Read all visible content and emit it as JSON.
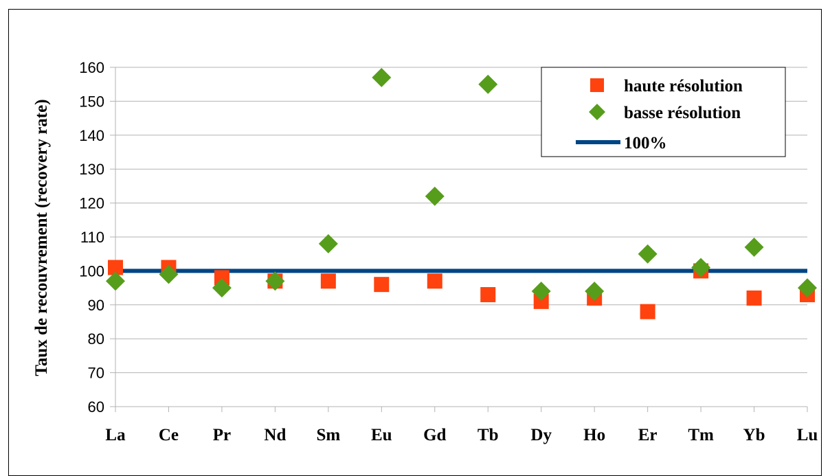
{
  "chart_data": {
    "type": "scatter",
    "title": "",
    "xlabel": "",
    "ylabel": "Taux de recouvrement (recovery rate)",
    "ylim": [
      60,
      160
    ],
    "yticks": [
      60,
      70,
      80,
      90,
      100,
      110,
      120,
      130,
      140,
      150,
      160
    ],
    "grid": true,
    "legend_position": "top-right",
    "categories": [
      "La",
      "Ce",
      "Pr",
      "Nd",
      "Sm",
      "Eu",
      "Gd",
      "Tb",
      "Dy",
      "Ho",
      "Er",
      "Tm",
      "Yb",
      "Lu"
    ],
    "series": [
      {
        "name": "haute résolution",
        "marker": "square",
        "color": "#ff420e",
        "values": [
          101,
          101,
          98,
          97,
          97,
          96,
          97,
          93,
          91,
          92,
          88,
          100,
          92,
          93
        ]
      },
      {
        "name": "basse résolution",
        "marker": "diamond",
        "color": "#579d1c",
        "values": [
          97,
          99,
          95,
          97,
          108,
          157,
          122,
          155,
          94,
          94,
          105,
          101,
          107,
          95
        ]
      },
      {
        "name": "100%",
        "marker": "line",
        "color": "#004586",
        "values": [
          100,
          100,
          100,
          100,
          100,
          100,
          100,
          100,
          100,
          100,
          100,
          100,
          100,
          100
        ]
      }
    ]
  }
}
